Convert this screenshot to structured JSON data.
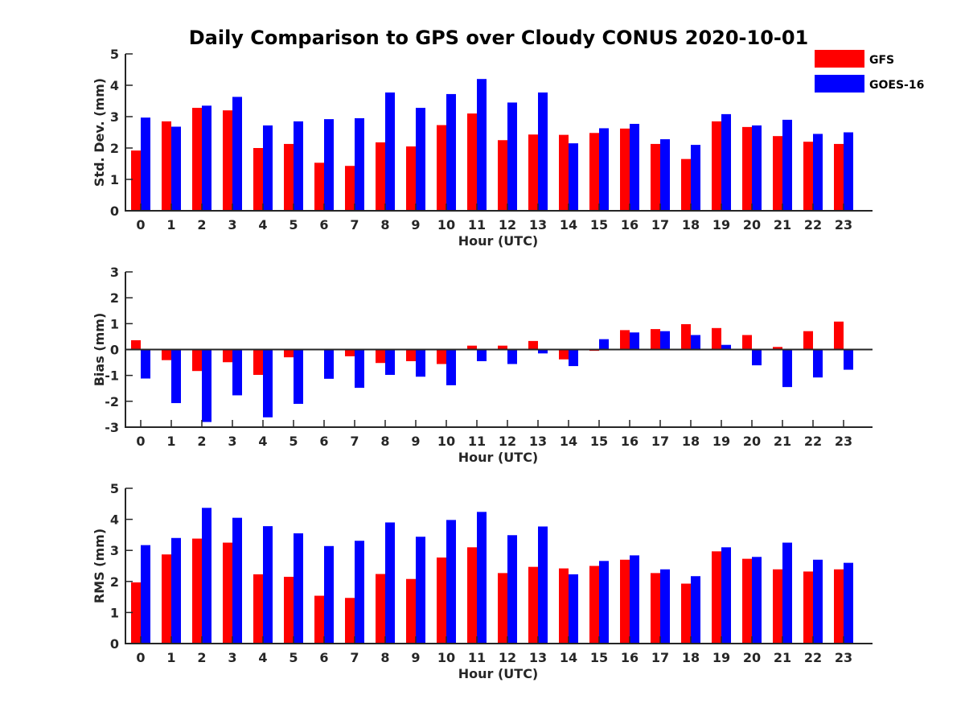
{
  "figure": {
    "title": "Daily Comparison to GPS over Cloudy CONUS 2020-10-01"
  },
  "legend": {
    "placement": "top-right",
    "entries": [
      {
        "name": "GFS",
        "color": "#ff0000"
      },
      {
        "name": "GOES-16",
        "color": "#0000ff"
      }
    ]
  },
  "chart_data": [
    {
      "type": "bar",
      "xlabel": "Hour (UTC)",
      "ylabel": "Std. Dev. (mm)",
      "ylim": [
        0,
        5
      ],
      "yticks": [
        0,
        1,
        2,
        3,
        4,
        5
      ],
      "categories": [
        "0",
        "1",
        "2",
        "3",
        "4",
        "5",
        "6",
        "7",
        "8",
        "9",
        "10",
        "11",
        "12",
        "13",
        "14",
        "15",
        "16",
        "17",
        "18",
        "19",
        "20",
        "21",
        "22",
        "23"
      ],
      "series": [
        {
          "name": "GFS",
          "color": "#ff0000",
          "values": [
            1.92,
            2.85,
            3.28,
            3.2,
            2.0,
            2.13,
            1.53,
            1.43,
            2.18,
            2.05,
            2.73,
            3.1,
            2.25,
            2.43,
            2.42,
            2.48,
            2.62,
            2.13,
            1.65,
            2.85,
            2.67,
            2.38,
            2.2,
            2.13
          ]
        },
        {
          "name": "GOES-16",
          "color": "#0000ff",
          "values": [
            2.97,
            2.68,
            3.35,
            3.63,
            2.72,
            2.85,
            2.92,
            2.95,
            3.77,
            3.28,
            3.72,
            4.2,
            3.45,
            3.77,
            2.15,
            2.63,
            2.77,
            2.28,
            2.1,
            3.08,
            2.72,
            2.9,
            2.45,
            2.5
          ]
        }
      ]
    },
    {
      "type": "bar",
      "xlabel": "Hour (UTC)",
      "ylabel": "Bias (mm)",
      "ylim": [
        -3,
        3
      ],
      "yticks": [
        -3,
        -2,
        -1,
        0,
        1,
        2,
        3
      ],
      "categories": [
        "0",
        "1",
        "2",
        "3",
        "4",
        "5",
        "6",
        "7",
        "8",
        "9",
        "10",
        "11",
        "12",
        "13",
        "14",
        "15",
        "16",
        "17",
        "18",
        "19",
        "20",
        "21",
        "22",
        "23"
      ],
      "series": [
        {
          "name": "GFS",
          "color": "#ff0000",
          "values": [
            0.36,
            -0.41,
            -0.83,
            -0.49,
            -0.98,
            -0.3,
            0.02,
            -0.26,
            -0.52,
            -0.45,
            -0.56,
            0.15,
            0.15,
            0.33,
            -0.38,
            -0.05,
            0.75,
            0.79,
            0.98,
            0.83,
            0.56,
            0.1,
            0.71,
            1.08
          ]
        },
        {
          "name": "GOES-16",
          "color": "#0000ff",
          "values": [
            -1.12,
            -2.07,
            -2.8,
            -1.77,
            -2.62,
            -2.1,
            -1.13,
            -1.48,
            -0.98,
            -1.05,
            -1.38,
            -0.45,
            -0.56,
            -0.15,
            -0.64,
            0.4,
            0.66,
            0.71,
            0.56,
            0.18,
            -0.61,
            -1.45,
            -1.08,
            -0.78
          ]
        }
      ]
    },
    {
      "type": "bar",
      "xlabel": "Hour (UTC)",
      "ylabel": "RMS (mm)",
      "ylim": [
        0,
        5
      ],
      "yticks": [
        0,
        1,
        2,
        3,
        4,
        5
      ],
      "categories": [
        "0",
        "1",
        "2",
        "3",
        "4",
        "5",
        "6",
        "7",
        "8",
        "9",
        "10",
        "11",
        "12",
        "13",
        "14",
        "15",
        "16",
        "17",
        "18",
        "19",
        "20",
        "21",
        "22",
        "23"
      ],
      "series": [
        {
          "name": "GFS",
          "color": "#ff0000",
          "values": [
            1.97,
            2.87,
            3.38,
            3.25,
            2.23,
            2.15,
            1.54,
            1.47,
            2.24,
            2.08,
            2.77,
            3.1,
            2.27,
            2.47,
            2.42,
            2.5,
            2.7,
            2.27,
            1.93,
            2.97,
            2.73,
            2.39,
            2.32,
            2.39
          ]
        },
        {
          "name": "GOES-16",
          "color": "#0000ff",
          "values": [
            3.17,
            3.4,
            4.37,
            4.05,
            3.78,
            3.55,
            3.14,
            3.31,
            3.9,
            3.44,
            3.98,
            4.24,
            3.49,
            3.77,
            2.23,
            2.66,
            2.84,
            2.39,
            2.17,
            3.1,
            2.79,
            3.25,
            2.7,
            2.6
          ]
        }
      ]
    }
  ]
}
